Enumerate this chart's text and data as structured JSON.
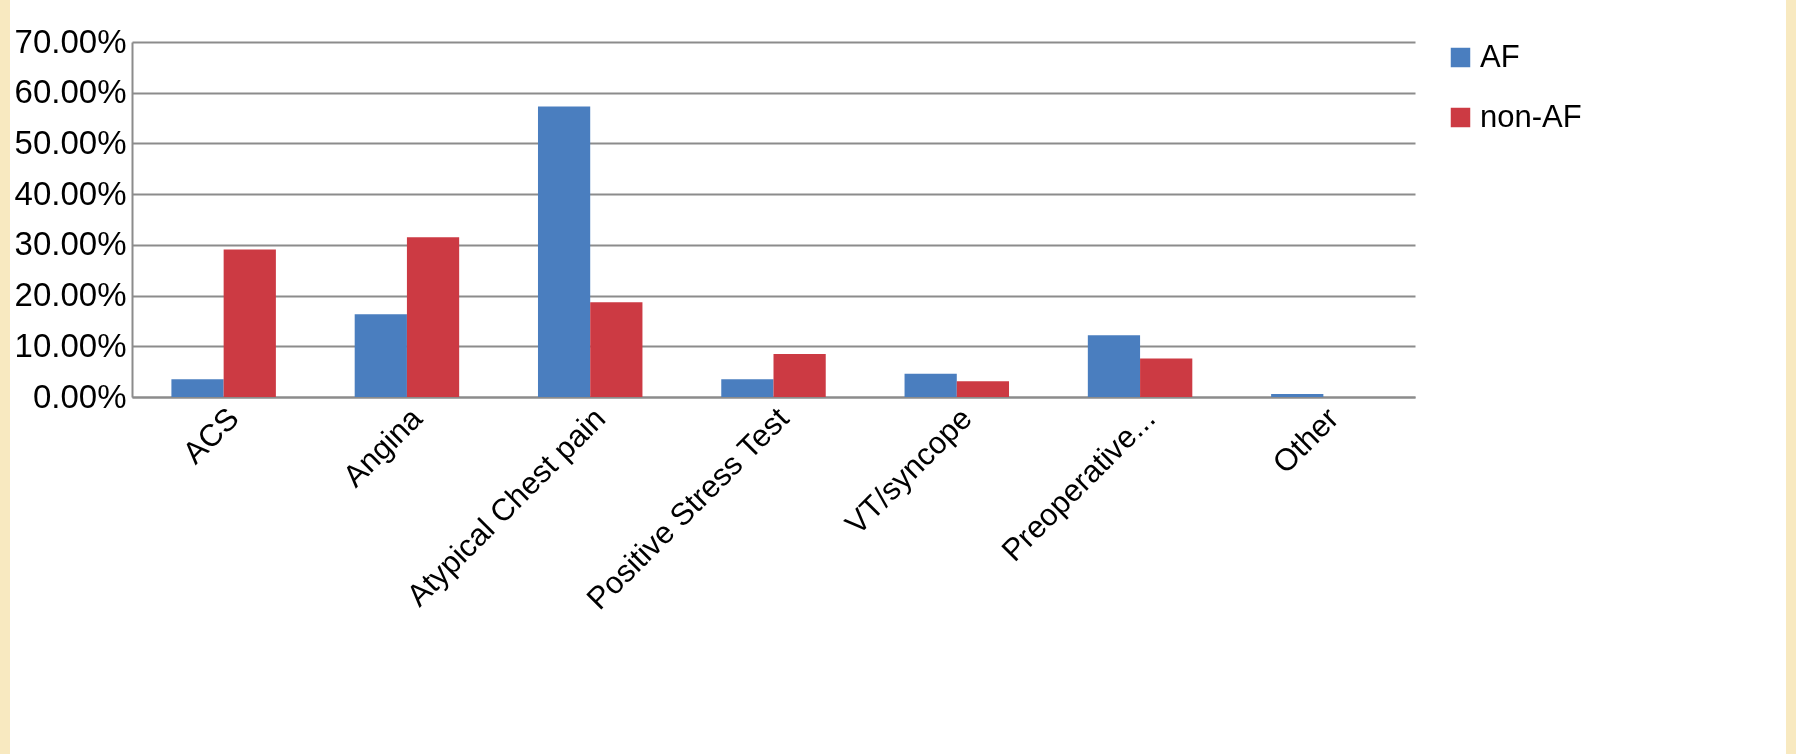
{
  "chart_data": {
    "type": "bar",
    "categories": [
      "ACS",
      "Angina",
      "Atypical Chest pain",
      "Positive Stress Test",
      "VT/syncope",
      "Preoperative...",
      "Other"
    ],
    "series": [
      {
        "name": "AF",
        "color": "#4a7ebf",
        "values": [
          3.5,
          16.3,
          57.3,
          3.5,
          4.6,
          12.2,
          0.6
        ]
      },
      {
        "name": "non-AF",
        "color": "#cc3a43",
        "values": [
          29.1,
          31.5,
          18.7,
          8.5,
          3.1,
          7.6,
          0
        ]
      }
    ],
    "ylim": [
      0,
      70
    ],
    "yticks": [
      {
        "value": 0,
        "label": "0.00%"
      },
      {
        "value": 10,
        "label": "10.00%"
      },
      {
        "value": 20,
        "label": "20.00%"
      },
      {
        "value": 30,
        "label": "30.00%"
      },
      {
        "value": 40,
        "label": "40.00%"
      },
      {
        "value": 50,
        "label": "50.00%"
      },
      {
        "value": 60,
        "label": "60.00%"
      },
      {
        "value": 70,
        "label": "70.00%"
      }
    ],
    "grid": "y",
    "legend": "right"
  }
}
